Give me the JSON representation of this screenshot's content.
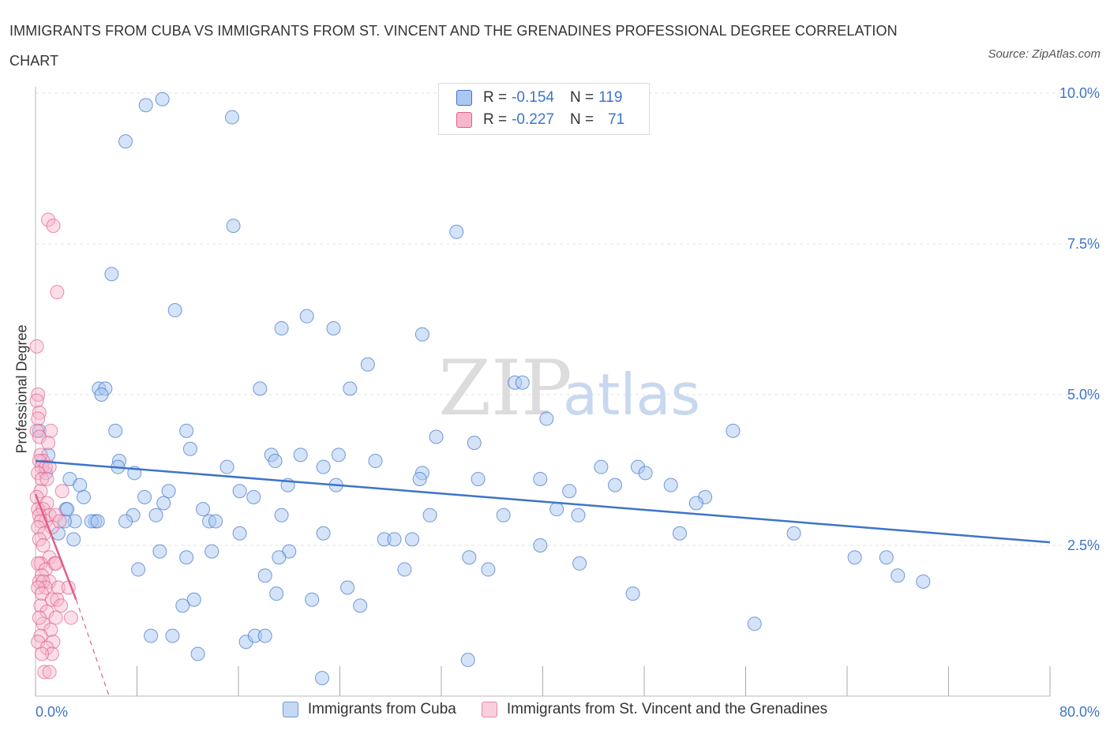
{
  "title": "IMMIGRANTS FROM CUBA VS IMMIGRANTS FROM ST. VINCENT AND THE GRENADINES PROFESSIONAL DEGREE CORRELATION CHART",
  "source": "Source: ZipAtlas.com",
  "watermark": {
    "zip": "ZIP",
    "atlas": "atlas"
  },
  "colors": {
    "blue": "#3d74c9",
    "blue_fill": "#aac8f2",
    "pink": "#e0608c",
    "pink_fill": "#f6b6cb",
    "grid": "#e3e3e3"
  },
  "legend_top": {
    "r_label": "R =",
    "n_label": "N =",
    "rows": [
      {
        "r": "-0.154",
        "n": "119"
      },
      {
        "r": "-0.227",
        "n": "71"
      }
    ]
  },
  "chart_data": {
    "type": "scatter",
    "title": "IMMIGRANTS FROM CUBA VS IMMIGRANTS FROM ST. VINCENT AND THE GRENADINES PROFESSIONAL DEGREE CORRELATION CHART",
    "xlabel": "",
    "ylabel": "Professional Degree",
    "xlim": [
      0,
      80
    ],
    "ylim": [
      0,
      10
    ],
    "x_tick_labels": [
      "0.0%",
      "80.0%"
    ],
    "y_tick_labels": [
      "2.5%",
      "5.0%",
      "7.5%",
      "10.0%"
    ],
    "y_ticks": [
      2.5,
      5.0,
      7.5,
      10.0
    ],
    "grid": true,
    "legend_position": "bottom",
    "series": [
      {
        "name": "Immigrants from Cuba",
        "R": -0.154,
        "N": 119,
        "trend": [
          [
            0,
            3.9
          ],
          [
            80,
            2.55
          ]
        ],
        "points": [
          [
            8.7,
            9.8
          ],
          [
            10.0,
            9.9
          ],
          [
            15.5,
            9.6
          ],
          [
            7.1,
            9.2
          ],
          [
            15.6,
            7.8
          ],
          [
            33.2,
            7.7
          ],
          [
            6.0,
            7.0
          ],
          [
            11.0,
            6.4
          ],
          [
            21.4,
            6.3
          ],
          [
            19.4,
            6.1
          ],
          [
            23.5,
            6.1
          ],
          [
            30.5,
            6.0
          ],
          [
            26.2,
            5.5
          ],
          [
            17.7,
            5.1
          ],
          [
            24.8,
            5.1
          ],
          [
            37.8,
            5.2
          ],
          [
            38.4,
            5.2
          ],
          [
            5.0,
            5.1
          ],
          [
            5.5,
            5.1
          ],
          [
            5.2,
            5.0
          ],
          [
            40.3,
            4.6
          ],
          [
            6.3,
            4.4
          ],
          [
            11.9,
            4.4
          ],
          [
            31.6,
            4.3
          ],
          [
            55.0,
            4.4
          ],
          [
            12.2,
            4.1
          ],
          [
            34.6,
            4.2
          ],
          [
            20.9,
            4.0
          ],
          [
            18.6,
            4.0
          ],
          [
            18.9,
            3.9
          ],
          [
            22.7,
            3.8
          ],
          [
            23.9,
            4.0
          ],
          [
            6.6,
            3.9
          ],
          [
            1.0,
            4.0
          ],
          [
            15.1,
            3.8
          ],
          [
            7.8,
            3.7
          ],
          [
            30.5,
            3.7
          ],
          [
            44.6,
            3.8
          ],
          [
            47.5,
            3.8
          ],
          [
            0.8,
            3.7
          ],
          [
            2.7,
            3.6
          ],
          [
            3.5,
            3.5
          ],
          [
            10.5,
            3.4
          ],
          [
            19.9,
            3.5
          ],
          [
            30.3,
            3.6
          ],
          [
            34.9,
            3.6
          ],
          [
            39.8,
            3.6
          ],
          [
            45.7,
            3.5
          ],
          [
            48.1,
            3.7
          ],
          [
            50.1,
            3.5
          ],
          [
            23.7,
            3.5
          ],
          [
            16.1,
            3.4
          ],
          [
            17.2,
            3.3
          ],
          [
            3.8,
            3.3
          ],
          [
            42.1,
            3.4
          ],
          [
            10.1,
            3.2
          ],
          [
            52.8,
            3.3
          ],
          [
            52.1,
            3.2
          ],
          [
            2.4,
            3.1
          ],
          [
            7.7,
            3.0
          ],
          [
            9.5,
            3.0
          ],
          [
            13.2,
            3.1
          ],
          [
            19.4,
            3.0
          ],
          [
            31.1,
            3.0
          ],
          [
            36.9,
            3.0
          ],
          [
            41.1,
            3.1
          ],
          [
            42.8,
            3.0
          ],
          [
            3.1,
            2.9
          ],
          [
            2.3,
            2.9
          ],
          [
            4.7,
            2.9
          ],
          [
            4.4,
            2.9
          ],
          [
            7.1,
            2.9
          ],
          [
            13.7,
            2.9
          ],
          [
            1.8,
            2.7
          ],
          [
            3.0,
            2.6
          ],
          [
            16.1,
            2.7
          ],
          [
            22.7,
            2.7
          ],
          [
            27.5,
            2.6
          ],
          [
            28.3,
            2.6
          ],
          [
            29.7,
            2.6
          ],
          [
            50.8,
            2.7
          ],
          [
            59.8,
            2.7
          ],
          [
            9.8,
            2.4
          ],
          [
            20.0,
            2.4
          ],
          [
            11.9,
            2.3
          ],
          [
            13.9,
            2.4
          ],
          [
            19.2,
            2.3
          ],
          [
            34.2,
            2.3
          ],
          [
            39.8,
            2.5
          ],
          [
            8.1,
            2.1
          ],
          [
            18.1,
            2.0
          ],
          [
            29.1,
            2.1
          ],
          [
            35.7,
            2.1
          ],
          [
            42.9,
            2.2
          ],
          [
            64.6,
            2.3
          ],
          [
            67.1,
            2.3
          ],
          [
            68.0,
            2.0
          ],
          [
            70.0,
            1.9
          ],
          [
            24.6,
            1.8
          ],
          [
            19.0,
            1.7
          ],
          [
            21.8,
            1.6
          ],
          [
            12.5,
            1.6
          ],
          [
            11.6,
            1.5
          ],
          [
            25.6,
            1.5
          ],
          [
            47.1,
            1.7
          ],
          [
            9.1,
            1.0
          ],
          [
            10.8,
            1.0
          ],
          [
            16.6,
            0.9
          ],
          [
            17.3,
            1.0
          ],
          [
            18.1,
            1.0
          ],
          [
            12.8,
            0.7
          ],
          [
            34.1,
            0.6
          ],
          [
            22.6,
            0.3
          ],
          [
            56.7,
            1.2
          ],
          [
            0.3,
            4.4
          ],
          [
            2.5,
            3.1
          ],
          [
            4.9,
            2.9
          ],
          [
            6.5,
            3.8
          ],
          [
            8.6,
            3.3
          ],
          [
            14.2,
            2.9
          ],
          [
            26.8,
            3.9
          ]
        ]
      },
      {
        "name": "Immigrants from St. Vincent and the Grenadines",
        "R": -0.227,
        "N": 71,
        "trend": [
          [
            0,
            3.35
          ],
          [
            3.2,
            1.6
          ]
        ],
        "trend_extension": [
          [
            3.2,
            1.6
          ],
          [
            5.8,
            0.0
          ]
        ],
        "points": [
          [
            1.0,
            7.9
          ],
          [
            1.4,
            7.8
          ],
          [
            1.7,
            6.7
          ],
          [
            0.1,
            5.8
          ],
          [
            0.2,
            5.0
          ],
          [
            0.1,
            4.9
          ],
          [
            0.3,
            4.7
          ],
          [
            0.2,
            4.6
          ],
          [
            1.2,
            4.4
          ],
          [
            0.1,
            4.4
          ],
          [
            0.3,
            4.3
          ],
          [
            1.0,
            4.2
          ],
          [
            0.4,
            4.0
          ],
          [
            0.6,
            3.9
          ],
          [
            0.3,
            3.9
          ],
          [
            0.5,
            3.8
          ],
          [
            0.8,
            3.8
          ],
          [
            1.1,
            3.8
          ],
          [
            0.2,
            3.7
          ],
          [
            0.5,
            3.6
          ],
          [
            0.4,
            3.4
          ],
          [
            2.1,
            3.4
          ],
          [
            0.1,
            3.3
          ],
          [
            0.9,
            3.2
          ],
          [
            0.2,
            3.1
          ],
          [
            0.6,
            3.1
          ],
          [
            1.1,
            3.0
          ],
          [
            0.3,
            3.0
          ],
          [
            0.8,
            2.9
          ],
          [
            1.6,
            3.0
          ],
          [
            0.4,
            2.9
          ],
          [
            1.3,
            2.8
          ],
          [
            0.2,
            2.8
          ],
          [
            0.7,
            2.7
          ],
          [
            0.3,
            2.6
          ],
          [
            0.6,
            2.5
          ],
          [
            1.1,
            2.3
          ],
          [
            0.4,
            2.2
          ],
          [
            1.5,
            2.2
          ],
          [
            0.2,
            2.2
          ],
          [
            0.8,
            2.1
          ],
          [
            0.5,
            2.0
          ],
          [
            1.1,
            1.9
          ],
          [
            0.3,
            1.9
          ],
          [
            0.6,
            1.9
          ],
          [
            0.8,
            1.8
          ],
          [
            1.8,
            1.8
          ],
          [
            0.2,
            1.8
          ],
          [
            2.6,
            1.8
          ],
          [
            0.5,
            1.7
          ],
          [
            1.3,
            1.6
          ],
          [
            1.7,
            1.6
          ],
          [
            0.4,
            1.5
          ],
          [
            2.0,
            1.5
          ],
          [
            0.9,
            1.4
          ],
          [
            1.6,
            1.3
          ],
          [
            2.8,
            1.3
          ],
          [
            0.6,
            1.2
          ],
          [
            1.2,
            1.1
          ],
          [
            0.4,
            1.0
          ],
          [
            1.4,
            0.9
          ],
          [
            0.2,
            0.9
          ],
          [
            0.9,
            0.8
          ],
          [
            1.3,
            0.7
          ],
          [
            0.5,
            0.7
          ],
          [
            0.7,
            0.4
          ],
          [
            1.1,
            0.4
          ],
          [
            0.3,
            1.3
          ],
          [
            1.9,
            2.9
          ],
          [
            0.9,
            3.6
          ],
          [
            1.6,
            2.2
          ]
        ]
      }
    ]
  },
  "axes": {
    "ylabel": "Professional Degree",
    "x_min_label": "0.0%",
    "x_max_label": "80.0%"
  },
  "legend_bottom": [
    {
      "label": "Immigrants from Cuba"
    },
    {
      "label": "Immigrants from St. Vincent and the Grenadines"
    }
  ]
}
